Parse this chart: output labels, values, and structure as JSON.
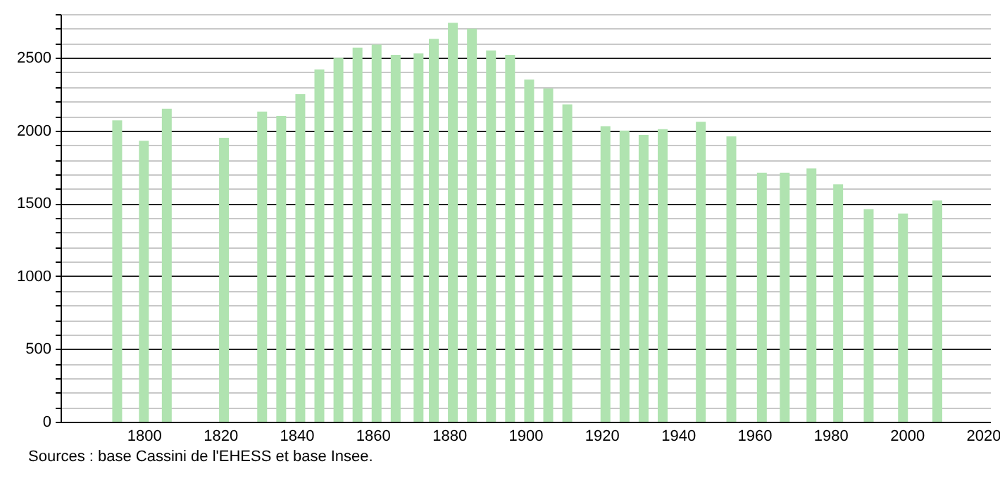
{
  "chart_data": {
    "type": "bar",
    "color": "#b0e3b0",
    "x": [
      1793,
      1800,
      1806,
      1821,
      1831,
      1836,
      1841,
      1846,
      1851,
      1856,
      1861,
      1866,
      1872,
      1876,
      1881,
      1886,
      1891,
      1896,
      1901,
      1906,
      1911,
      1921,
      1926,
      1931,
      1936,
      1946,
      1954,
      1962,
      1968,
      1975,
      1982,
      1990,
      1999,
      2008
    ],
    "values": [
      2070,
      1930,
      2150,
      1950,
      2130,
      2100,
      2250,
      2420,
      2500,
      2570,
      2590,
      2520,
      2530,
      2630,
      2740,
      2700,
      2550,
      2520,
      2350,
      2290,
      2180,
      2030,
      2000,
      1970,
      2010,
      2060,
      1960,
      1710,
      1710,
      1740,
      1630,
      1460,
      1430,
      1520
    ],
    "xlim": [
      1780,
      2020
    ],
    "xticks": [
      1800,
      1820,
      1840,
      1860,
      1880,
      1900,
      1920,
      1940,
      1960,
      1980,
      2000,
      2020
    ],
    "ylim": [
      0,
      2800
    ],
    "yticks": [
      0,
      {
        "value": 100,
        "label": null
      },
      {
        "value": 200,
        "label": null
      },
      {
        "value": 300,
        "label": null
      },
      {
        "value": 400,
        "label": null
      },
      500,
      {
        "value": 600,
        "label": null
      },
      {
        "value": 700,
        "label": null
      },
      {
        "value": 800,
        "label": null
      },
      {
        "value": 900,
        "label": null
      },
      1000,
      {
        "value": 1100,
        "label": null
      },
      {
        "value": 1200,
        "label": null
      },
      {
        "value": 1300,
        "label": null
      },
      {
        "value": 1400,
        "label": null
      },
      1500,
      {
        "value": 1600,
        "label": null
      },
      {
        "value": 1700,
        "label": null
      },
      {
        "value": 1800,
        "label": null
      },
      {
        "value": 1900,
        "label": null
      },
      2000,
      {
        "value": 2100,
        "label": null
      },
      {
        "value": 2200,
        "label": null
      },
      {
        "value": 2300,
        "label": null
      },
      {
        "value": 2400,
        "label": null
      },
      2500,
      {
        "value": 2600,
        "label": null
      },
      {
        "value": 2700,
        "label": null
      },
      {
        "value": 2800,
        "label": null
      }
    ],
    "grid": "y",
    "annotations": [
      "Sources : base Cassini de l'EHESS et base Insee."
    ]
  }
}
